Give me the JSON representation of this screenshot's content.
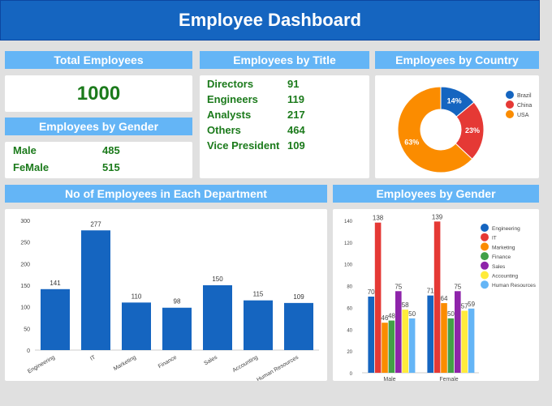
{
  "title": "Employee Dashboard",
  "total": {
    "header": "Total Employees",
    "value": "1000"
  },
  "gender": {
    "header": "Employees by Gender",
    "rows": [
      {
        "label": "Male",
        "value": "485"
      },
      {
        "label": "FeMale",
        "value": "515"
      }
    ]
  },
  "titles": {
    "header": "Employees by Title",
    "rows": [
      {
        "label": "Directors",
        "value": "91"
      },
      {
        "label": "Engineers",
        "value": "119"
      },
      {
        "label": "Analysts",
        "value": "217"
      },
      {
        "label": "Others",
        "value": "464"
      },
      {
        "label": "Vice President",
        "value": "109"
      }
    ]
  },
  "country": {
    "header": "Employees by Country"
  },
  "dept": {
    "header": "No of Employees in Each Department"
  },
  "gender_chart": {
    "header": "Employees by Gender"
  },
  "chart_data": [
    {
      "type": "pie",
      "donut": true,
      "labels": [
        "Brazil",
        "China",
        "USA"
      ],
      "values": [
        14,
        23,
        63
      ],
      "colors": [
        "#1565c0",
        "#e53935",
        "#fb8c00"
      ],
      "legend": "right"
    },
    {
      "type": "bar",
      "categories": [
        "Engineering",
        "IT",
        "Marketing",
        "Finance",
        "Sales",
        "Accounting",
        "Human Resources"
      ],
      "values": [
        141,
        277,
        110,
        98,
        150,
        115,
        109
      ],
      "ylim": [
        0,
        300
      ],
      "yticks": [
        0,
        50,
        100,
        150,
        200,
        250,
        300
      ],
      "color": "#1565c0"
    },
    {
      "type": "bar",
      "categories": [
        "Male",
        "Female"
      ],
      "ylim": [
        0,
        140
      ],
      "yticks": [
        0,
        20,
        40,
        60,
        80,
        100,
        120,
        140
      ],
      "legend": "right",
      "series": [
        {
          "name": "Engineering",
          "values": [
            70,
            71
          ],
          "color": "#1565c0"
        },
        {
          "name": "IT",
          "values": [
            138,
            139
          ],
          "color": "#e53935"
        },
        {
          "name": "Marketing",
          "values": [
            46,
            64
          ],
          "color": "#fb8c00"
        },
        {
          "name": "Finance",
          "values": [
            48,
            50
          ],
          "color": "#43a047"
        },
        {
          "name": "Sales",
          "values": [
            75,
            75
          ],
          "color": "#8e24aa"
        },
        {
          "name": "Accounting",
          "values": [
            58,
            57
          ],
          "color": "#ffeb3b"
        },
        {
          "name": "Human Resources",
          "values": [
            50,
            59
          ],
          "color": "#64b5f6"
        }
      ]
    }
  ]
}
